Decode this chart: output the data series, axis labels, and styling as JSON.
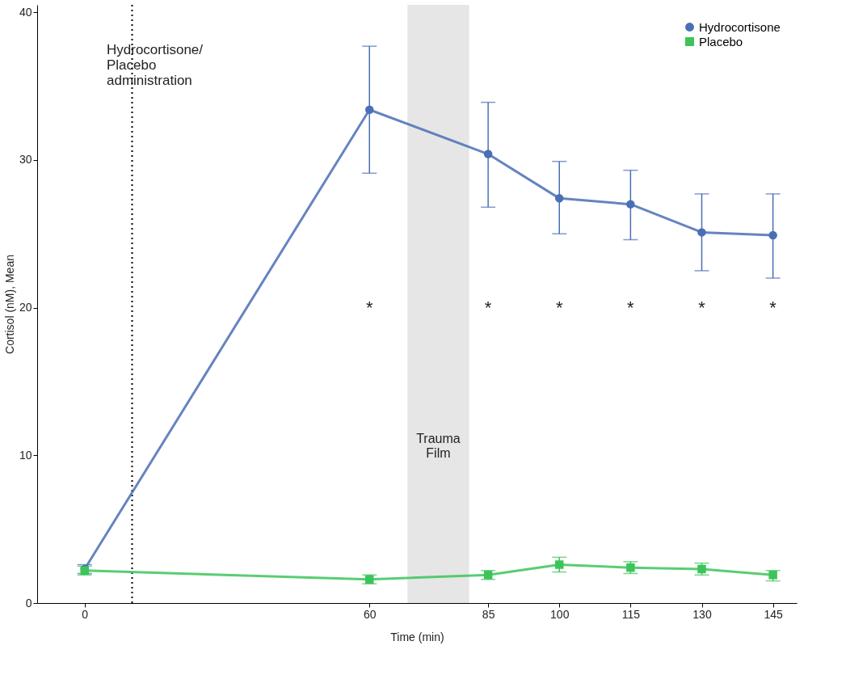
{
  "chart_data": {
    "type": "line",
    "xlabel": "Time (min)",
    "ylabel": "Cortisol (nM), Mean",
    "x": [
      0,
      60,
      85,
      100,
      115,
      130,
      145
    ],
    "xlim": [
      -10,
      150
    ],
    "xticks": [
      0,
      60,
      85,
      100,
      115,
      130,
      145
    ],
    "ylim": [
      0,
      40.5
    ],
    "yticks": [
      0,
      10,
      20,
      30,
      40
    ],
    "series": [
      {
        "name": "Hydrocortisone",
        "color": "#4a6fb5",
        "marker": "circle",
        "values": [
          2.3,
          33.4,
          30.4,
          27.4,
          27.0,
          25.1,
          24.9
        ],
        "errors": [
          [
            2.0,
            2.6
          ],
          [
            29.1,
            37.7
          ],
          [
            26.8,
            33.9
          ],
          [
            25.0,
            29.9
          ],
          [
            24.6,
            29.3
          ],
          [
            22.5,
            27.7
          ],
          [
            22.0,
            27.7
          ]
        ]
      },
      {
        "name": "Placebo",
        "color": "#3cc45a",
        "marker": "square",
        "values": [
          2.2,
          1.6,
          1.9,
          2.6,
          2.4,
          2.3,
          1.9
        ],
        "errors": [
          [
            1.9,
            2.5
          ],
          [
            1.3,
            1.9
          ],
          [
            1.6,
            2.2
          ],
          [
            2.1,
            3.1
          ],
          [
            2.0,
            2.8
          ],
          [
            1.9,
            2.7
          ],
          [
            1.5,
            2.2
          ]
        ]
      }
    ],
    "ref_lines": [
      {
        "axis": "x",
        "value": 10,
        "line_style": "dotted",
        "color": "#000000"
      }
    ],
    "bands": [
      {
        "axis": "x",
        "from": 68,
        "to": 81,
        "label": "Trauma\nFilm",
        "color": "#e6e6e6"
      }
    ],
    "annotations": [
      "Hydrocortisone/\nPlacebo\nadministration",
      "*",
      "*",
      "*",
      "*",
      "*",
      "*"
    ],
    "grid": false,
    "legend": "top right",
    "line_style": "solid"
  }
}
